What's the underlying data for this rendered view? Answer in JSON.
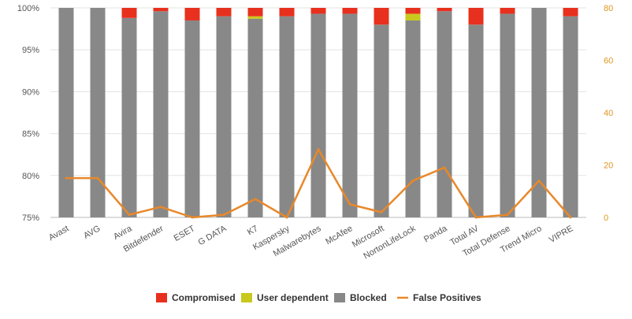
{
  "chart_data": {
    "type": "bar",
    "stacked": true,
    "categories": [
      "Avast",
      "AVG",
      "Avira",
      "Bitdefender",
      "ESET",
      "G DATA",
      "K7",
      "Kaspersky",
      "Malwarebytes",
      "McAfee",
      "Microsoft",
      "NortonLifeLock",
      "Panda",
      "Total AV",
      "Total Defense",
      "Trend Micro",
      "VIPRE"
    ],
    "series": [
      {
        "name": "Blocked",
        "color": "#888888",
        "values": [
          100,
          100,
          98.8,
          99.6,
          98.5,
          99.0,
          98.7,
          99.0,
          99.3,
          99.3,
          98.0,
          98.5,
          99.6,
          98.0,
          99.3,
          100,
          99.0
        ]
      },
      {
        "name": "User dependent",
        "color": "#c8c81e",
        "values": [
          0,
          0,
          0,
          0,
          0,
          0,
          0.3,
          0,
          0,
          0,
          0,
          0.8,
          0,
          0,
          0,
          0,
          0
        ]
      },
      {
        "name": "Compromised",
        "color": "#e8301e",
        "values": [
          0,
          0,
          1.2,
          0.4,
          1.5,
          1.0,
          1.0,
          1.0,
          0.7,
          0.7,
          2.0,
          0.7,
          0.4,
          2.0,
          0.7,
          0,
          1.0
        ]
      }
    ],
    "line_series": {
      "name": "False Positives",
      "color": "#e8882a",
      "values": [
        15,
        15,
        1,
        4,
        0,
        1,
        7,
        0,
        26,
        5,
        2,
        14,
        19,
        0,
        1,
        14,
        0
      ]
    },
    "ylim_left": [
      75,
      100
    ],
    "yticks_left": [
      "75%",
      "80%",
      "85%",
      "90%",
      "95%",
      "100%"
    ],
    "ylim_right": [
      0,
      80
    ],
    "yticks_right": [
      "0",
      "20",
      "40",
      "60",
      "80"
    ],
    "legend": {
      "position": "bottom",
      "items": [
        {
          "label": "Compromised",
          "color": "#e8301e",
          "kind": "box"
        },
        {
          "label": "User dependent",
          "color": "#c8c81e",
          "kind": "box"
        },
        {
          "label": "Blocked",
          "color": "#888888",
          "kind": "box"
        },
        {
          "label": "False Positives",
          "color": "#e8882a",
          "kind": "line"
        }
      ]
    },
    "grid": true
  }
}
